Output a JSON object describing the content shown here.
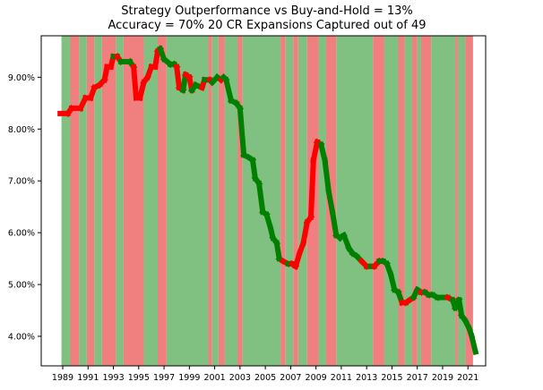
{
  "chart_data": {
    "type": "line",
    "title": "Strategy Outperformance vs Buy-and-Hold = 13%",
    "subtitle": "Accuracy = 70%  20 CR Expansions Captured out of 49",
    "xlabel": "",
    "ylabel": "",
    "xlim": [
      1987.3,
      2022.4
    ],
    "ylim": [
      3.43,
      9.8
    ],
    "x_ticks": [
      "1989",
      "1991",
      "1993",
      "1995",
      "1997",
      "1999",
      "2001",
      "2003",
      "2005",
      "2007",
      "2009",
      "2011",
      "2013",
      "2015",
      "2017",
      "2019",
      "2021"
    ],
    "y_ticks": [
      "4.00%",
      "5.00%",
      "6.00%",
      "7.00%",
      "8.00%",
      "9.00%"
    ],
    "y_tick_values": [
      4,
      5,
      6,
      7,
      8,
      9
    ],
    "grid": false,
    "legend": "none",
    "colors": {
      "correct_band": "#80c080",
      "wrong_band": "#f08080",
      "gain_line": "#008000",
      "loss_line": "#ff0000"
    },
    "bands": [
      {
        "start": 1988.9,
        "end": 1989.6,
        "state": "correct"
      },
      {
        "start": 1989.6,
        "end": 1990.3,
        "state": "wrong"
      },
      {
        "start": 1990.3,
        "end": 1990.9,
        "state": "correct"
      },
      {
        "start": 1990.9,
        "end": 1991.5,
        "state": "wrong"
      },
      {
        "start": 1991.5,
        "end": 1992.1,
        "state": "correct"
      },
      {
        "start": 1992.1,
        "end": 1993.2,
        "state": "wrong"
      },
      {
        "start": 1993.2,
        "end": 1993.8,
        "state": "correct"
      },
      {
        "start": 1993.8,
        "end": 1995.4,
        "state": "wrong"
      },
      {
        "start": 1995.4,
        "end": 1996.5,
        "state": "correct"
      },
      {
        "start": 1996.5,
        "end": 1997.2,
        "state": "wrong"
      },
      {
        "start": 1997.2,
        "end": 2000.5,
        "state": "correct"
      },
      {
        "start": 2000.5,
        "end": 2000.8,
        "state": "wrong"
      },
      {
        "start": 2000.8,
        "end": 2001.3,
        "state": "correct"
      },
      {
        "start": 2001.3,
        "end": 2001.8,
        "state": "wrong"
      },
      {
        "start": 2001.8,
        "end": 2002.8,
        "state": "correct"
      },
      {
        "start": 2002.8,
        "end": 2003.2,
        "state": "wrong"
      },
      {
        "start": 2003.2,
        "end": 2006.2,
        "state": "correct"
      },
      {
        "start": 2006.2,
        "end": 2006.6,
        "state": "wrong"
      },
      {
        "start": 2006.6,
        "end": 2007.2,
        "state": "correct"
      },
      {
        "start": 2007.2,
        "end": 2007.6,
        "state": "wrong"
      },
      {
        "start": 2007.6,
        "end": 2008.3,
        "state": "correct"
      },
      {
        "start": 2008.3,
        "end": 2009.2,
        "state": "wrong"
      },
      {
        "start": 2009.2,
        "end": 2009.8,
        "state": "correct"
      },
      {
        "start": 2009.8,
        "end": 2010.6,
        "state": "wrong"
      },
      {
        "start": 2010.6,
        "end": 2013.5,
        "state": "correct"
      },
      {
        "start": 2013.5,
        "end": 2014.4,
        "state": "wrong"
      },
      {
        "start": 2014.4,
        "end": 2015.5,
        "state": "correct"
      },
      {
        "start": 2015.5,
        "end": 2016.0,
        "state": "wrong"
      },
      {
        "start": 2016.0,
        "end": 2016.6,
        "state": "correct"
      },
      {
        "start": 2016.6,
        "end": 2017.0,
        "state": "wrong"
      },
      {
        "start": 2017.0,
        "end": 2017.3,
        "state": "correct"
      },
      {
        "start": 2017.3,
        "end": 2018.1,
        "state": "wrong"
      },
      {
        "start": 2018.1,
        "end": 2020.0,
        "state": "correct"
      },
      {
        "start": 2020.0,
        "end": 2020.2,
        "state": "wrong"
      },
      {
        "start": 2020.2,
        "end": 2020.8,
        "state": "correct"
      },
      {
        "start": 2020.8,
        "end": 2021.4,
        "state": "wrong"
      }
    ],
    "series": [
      {
        "values": [
          {
            "x": 1988.8,
            "y": 8.3
          },
          {
            "x": 1989.4,
            "y": 8.3
          },
          {
            "x": 1989.7,
            "y": 8.4
          },
          {
            "x": 1990.4,
            "y": 8.4
          },
          {
            "x": 1990.8,
            "y": 8.6
          },
          {
            "x": 1991.2,
            "y": 8.6
          },
          {
            "x": 1991.5,
            "y": 8.8
          },
          {
            "x": 1991.9,
            "y": 8.85
          },
          {
            "x": 1992.3,
            "y": 8.95
          },
          {
            "x": 1992.5,
            "y": 9.2
          },
          {
            "x": 1992.8,
            "y": 9.2
          },
          {
            "x": 1993.0,
            "y": 9.4
          },
          {
            "x": 1993.3,
            "y": 9.4
          },
          {
            "x": 1993.6,
            "y": 9.3
          },
          {
            "x": 1994.0,
            "y": 9.3
          },
          {
            "x": 1994.3,
            "y": 9.3
          },
          {
            "x": 1994.6,
            "y": 9.2
          },
          {
            "x": 1994.8,
            "y": 8.6
          },
          {
            "x": 1995.1,
            "y": 8.6
          },
          {
            "x": 1995.4,
            "y": 8.9
          },
          {
            "x": 1995.7,
            "y": 9.0
          },
          {
            "x": 1996.0,
            "y": 9.2
          },
          {
            "x": 1996.3,
            "y": 9.2
          },
          {
            "x": 1996.5,
            "y": 9.5
          },
          {
            "x": 1996.7,
            "y": 9.55
          },
          {
            "x": 1997.0,
            "y": 9.35
          },
          {
            "x": 1997.5,
            "y": 9.25
          },
          {
            "x": 1997.8,
            "y": 9.25
          },
          {
            "x": 1998.0,
            "y": 9.2
          },
          {
            "x": 1998.2,
            "y": 8.8
          },
          {
            "x": 1998.5,
            "y": 8.75
          },
          {
            "x": 1998.7,
            "y": 9.05
          },
          {
            "x": 1999.0,
            "y": 9.0
          },
          {
            "x": 1999.2,
            "y": 8.75
          },
          {
            "x": 1999.5,
            "y": 8.85
          },
          {
            "x": 2000.0,
            "y": 8.8
          },
          {
            "x": 2000.2,
            "y": 8.95
          },
          {
            "x": 2000.6,
            "y": 8.95
          },
          {
            "x": 2000.8,
            "y": 8.9
          },
          {
            "x": 2001.2,
            "y": 9.0
          },
          {
            "x": 2001.5,
            "y": 8.95
          },
          {
            "x": 2001.7,
            "y": 9.0
          },
          {
            "x": 2001.9,
            "y": 8.95
          },
          {
            "x": 2002.3,
            "y": 8.55
          },
          {
            "x": 2002.7,
            "y": 8.5
          },
          {
            "x": 2003.0,
            "y": 8.4
          },
          {
            "x": 2003.3,
            "y": 7.5
          },
          {
            "x": 2003.7,
            "y": 7.45
          },
          {
            "x": 2004.0,
            "y": 7.4
          },
          {
            "x": 2004.2,
            "y": 7.05
          },
          {
            "x": 2004.5,
            "y": 6.95
          },
          {
            "x": 2004.8,
            "y": 6.4
          },
          {
            "x": 2005.1,
            "y": 6.35
          },
          {
            "x": 2005.4,
            "y": 6.1
          },
          {
            "x": 2005.6,
            "y": 5.9
          },
          {
            "x": 2005.9,
            "y": 5.8
          },
          {
            "x": 2006.1,
            "y": 5.5
          },
          {
            "x": 2006.4,
            "y": 5.45
          },
          {
            "x": 2006.8,
            "y": 5.4
          },
          {
            "x": 2007.1,
            "y": 5.4
          },
          {
            "x": 2007.4,
            "y": 5.35
          },
          {
            "x": 2007.7,
            "y": 5.6
          },
          {
            "x": 2008.0,
            "y": 5.8
          },
          {
            "x": 2008.3,
            "y": 6.2
          },
          {
            "x": 2008.6,
            "y": 6.3
          },
          {
            "x": 2008.8,
            "y": 7.4
          },
          {
            "x": 2009.1,
            "y": 7.75
          },
          {
            "x": 2009.4,
            "y": 7.7
          },
          {
            "x": 2009.7,
            "y": 7.4
          },
          {
            "x": 2010.0,
            "y": 6.8
          },
          {
            "x": 2010.3,
            "y": 6.4
          },
          {
            "x": 2010.6,
            "y": 5.95
          },
          {
            "x": 2010.9,
            "y": 5.9
          },
          {
            "x": 2011.2,
            "y": 5.95
          },
          {
            "x": 2011.6,
            "y": 5.7
          },
          {
            "x": 2011.9,
            "y": 5.6
          },
          {
            "x": 2012.2,
            "y": 5.55
          },
          {
            "x": 2012.6,
            "y": 5.45
          },
          {
            "x": 2013.0,
            "y": 5.35
          },
          {
            "x": 2013.3,
            "y": 5.35
          },
          {
            "x": 2013.6,
            "y": 5.35
          },
          {
            "x": 2014.0,
            "y": 5.45
          },
          {
            "x": 2014.3,
            "y": 5.45
          },
          {
            "x": 2014.6,
            "y": 5.4
          },
          {
            "x": 2014.9,
            "y": 5.2
          },
          {
            "x": 2015.2,
            "y": 4.9
          },
          {
            "x": 2015.5,
            "y": 4.85
          },
          {
            "x": 2015.8,
            "y": 4.65
          },
          {
            "x": 2016.1,
            "y": 4.65
          },
          {
            "x": 2016.4,
            "y": 4.7
          },
          {
            "x": 2016.7,
            "y": 4.75
          },
          {
            "x": 2017.0,
            "y": 4.9
          },
          {
            "x": 2017.3,
            "y": 4.85
          },
          {
            "x": 2017.6,
            "y": 4.85
          },
          {
            "x": 2017.9,
            "y": 4.8
          },
          {
            "x": 2018.2,
            "y": 4.8
          },
          {
            "x": 2018.6,
            "y": 4.75
          },
          {
            "x": 2019.0,
            "y": 4.75
          },
          {
            "x": 2019.4,
            "y": 4.75
          },
          {
            "x": 2019.8,
            "y": 4.7
          },
          {
            "x": 2020.0,
            "y": 4.55
          },
          {
            "x": 2020.3,
            "y": 4.7
          },
          {
            "x": 2020.5,
            "y": 4.4
          },
          {
            "x": 2020.8,
            "y": 4.3
          },
          {
            "x": 2021.1,
            "y": 4.15
          },
          {
            "x": 2021.3,
            "y": 4.0
          },
          {
            "x": 2021.6,
            "y": 3.7
          }
        ],
        "segment_states": [
          "loss",
          "loss",
          "loss",
          "loss",
          "loss",
          "loss",
          "loss",
          "loss",
          "loss",
          "loss",
          "loss",
          "gain",
          "loss",
          "gain",
          "gain",
          "gain",
          "loss",
          "loss",
          "loss",
          "loss",
          "loss",
          "loss",
          "loss",
          "loss",
          "gain",
          "gain",
          "gain",
          "gain",
          "loss",
          "loss",
          "gain",
          "loss",
          "loss",
          "gain",
          "gain",
          "loss",
          "gain",
          "loss",
          "gain",
          "gain",
          "loss",
          "gain",
          "gain",
          "gain",
          "gain",
          "gain",
          "gain",
          "gain",
          "gain",
          "gain",
          "gain",
          "gain",
          "gain",
          "gain",
          "gain",
          "gain",
          "gain",
          "loss",
          "gain",
          "loss",
          "loss",
          "loss",
          "loss",
          "loss",
          "loss",
          "loss",
          "loss",
          "gain",
          "gain",
          "gain",
          "gain",
          "gain",
          "gain",
          "gain",
          "gain",
          "gain",
          "gain",
          "loss",
          "loss",
          "gain",
          "loss",
          "gain",
          "gain",
          "gain",
          "gain",
          "gain",
          "gain",
          "loss",
          "loss",
          "loss",
          "gain",
          "gain",
          "loss",
          "gain",
          "gain",
          "gain",
          "gain",
          "gain",
          "loss",
          "gain",
          "gain",
          "gain",
          "gain",
          "gain",
          "gain"
        ]
      }
    ]
  }
}
